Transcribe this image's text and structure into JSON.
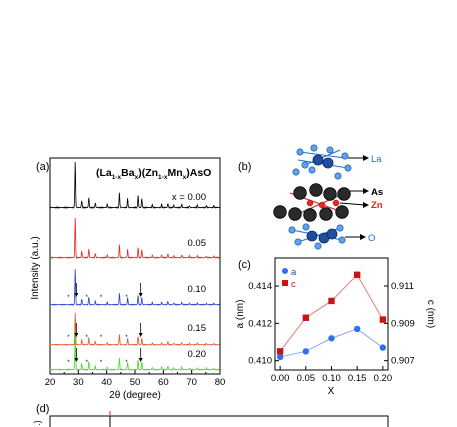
{
  "panel_a": {
    "label": "(a)",
    "formula": {
      "p1": "(La",
      "s1": "1-x",
      "p2": "Ba",
      "s2": "x",
      "p3": ")(Zn",
      "s3": "1-x",
      "p4": "Mn",
      "s4": "x",
      "p5": ")AsO"
    },
    "ylabel": "Intensity (a.u.)",
    "xlabel": "2θ (degree)",
    "xticks": [
      "20",
      "30",
      "40",
      "50",
      "60",
      "70",
      "80"
    ],
    "patterns": [
      {
        "label": "x = 0.00",
        "color": "#000000"
      },
      {
        "label": "0.05",
        "color": "#e8281e"
      },
      {
        "label": "0.10",
        "color": "#2f3fd0"
      },
      {
        "label": "0.15",
        "color": "#e2562a"
      },
      {
        "label": "0.20",
        "color": "#3fe01f"
      }
    ]
  },
  "panel_b": {
    "label": "(b)",
    "atoms": [
      "La",
      "As",
      "Zn",
      "O"
    ],
    "colors": {
      "La": "#1f6fd6",
      "As": "#000000",
      "Zn": "#e8281e",
      "O": "#1f6fd6"
    }
  },
  "panel_c": {
    "label": "(c)",
    "xlabel": "X",
    "ylabel_left": "a (nm)",
    "ylabel_right": "c (nm)",
    "legend": [
      "a",
      "c"
    ],
    "xticks": [
      "0.00",
      "0.05",
      "0.10",
      "0.15",
      "0.20"
    ],
    "yticks_left": [
      "0.410",
      "0.412",
      "0.414"
    ],
    "yticks_right": [
      "0.907",
      "0.909",
      "0.911"
    ]
  },
  "panel_d": {
    "label": "(d)",
    "ylabel_fragment": ".)"
  },
  "chart_data": [
    {
      "type": "line",
      "x": [
        0.0,
        0.05,
        0.1,
        0.15,
        0.2
      ],
      "xlabel": "X",
      "series": [
        {
          "name": "a",
          "axis": "left",
          "color": "#2f3fd0",
          "marker": "circle",
          "values": [
            0.4102,
            0.4105,
            0.4112,
            0.4117,
            0.4107
          ]
        },
        {
          "name": "c",
          "axis": "right",
          "color": "#c81414",
          "marker": "square",
          "values": [
            0.9075,
            0.9093,
            0.9102,
            0.9116,
            0.9092
          ]
        }
      ],
      "ylabel_left": "a (nm)",
      "ylim_left": [
        0.4095,
        0.4155
      ],
      "ylabel_right": "c (nm)",
      "ylim_right": [
        0.9065,
        0.9125
      ],
      "xlim": [
        -0.01,
        0.21
      ]
    }
  ]
}
